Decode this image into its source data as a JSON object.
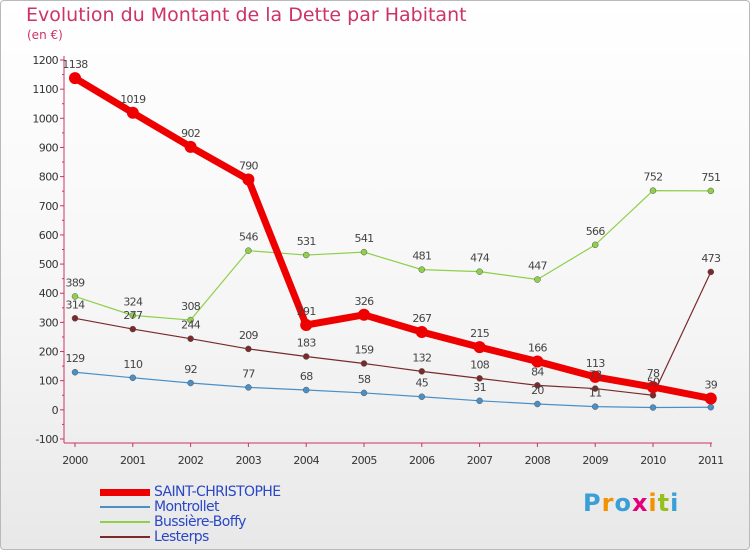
{
  "title": "Evolution du Montant de la Dette par Habitant",
  "unit": "(en €)",
  "logo": {
    "letters": [
      "P",
      "r",
      "o",
      "x",
      "i",
      "t",
      "i"
    ],
    "colors": [
      "#3a9fd8",
      "#f39200",
      "#3a9fd8",
      "#e2007a",
      "#f39200",
      "#95c11f",
      "#3a9fd8"
    ]
  },
  "chart_data": {
    "type": "line",
    "x": [
      "2000",
      "2001",
      "2002",
      "2003",
      "2004",
      "2005",
      "2006",
      "2007",
      "2008",
      "2009",
      "2010",
      "2011"
    ],
    "yticks": [
      "-100",
      "0",
      "100",
      "200",
      "300",
      "400",
      "500",
      "600",
      "700",
      "800",
      "900",
      "1000",
      "1100",
      "1200"
    ],
    "ylim": [
      -100,
      1200
    ],
    "grid": false,
    "legend_position": "bottom-left",
    "series": [
      {
        "name": "Montrollet",
        "color": "#4a90c8",
        "width": 1.2,
        "values": [
          129,
          110,
          92,
          77,
          68,
          58,
          45,
          31,
          20,
          11,
          8,
          9
        ],
        "labels": [
          "129",
          "110",
          "92",
          "77",
          "68",
          "58",
          "45",
          "31",
          "20",
          "11",
          "",
          ""
        ]
      },
      {
        "name": "Bussière-Boffy",
        "color": "#8ed04a",
        "width": 1.2,
        "values": [
          389,
          324,
          308,
          546,
          531,
          541,
          481,
          474,
          447,
          566,
          752,
          751
        ],
        "labels": [
          "389",
          "324",
          "308",
          "546",
          "531",
          "541",
          "481",
          "474",
          "447",
          "566",
          "752",
          "751"
        ]
      },
      {
        "name": "Lesterps",
        "color": "#7a2a2a",
        "width": 1.2,
        "values": [
          314,
          277,
          244,
          209,
          183,
          159,
          132,
          108,
          84,
          73,
          50,
          473
        ],
        "labels": [
          "314",
          "277",
          "244",
          "209",
          "183",
          "159",
          "132",
          "108",
          "84",
          "73",
          "50",
          "473"
        ]
      },
      {
        "name": "SAINT-CHRISTOPHE",
        "color": "#ee0000",
        "width": 7,
        "values": [
          1138,
          1019,
          902,
          790,
          291,
          326,
          267,
          215,
          166,
          113,
          78,
          39
        ],
        "labels": [
          "1138",
          "1019",
          "902",
          "790",
          "291",
          "326",
          "267",
          "215",
          "166",
          "113",
          "78",
          "39"
        ]
      }
    ],
    "legend": [
      {
        "name": "SAINT-CHRISTOPHE",
        "color": "#ee0000",
        "width": 7
      },
      {
        "name": "Montrollet",
        "color": "#4a90c8",
        "width": 2
      },
      {
        "name": "Bussière-Boffy",
        "color": "#8ed04a",
        "width": 2
      },
      {
        "name": "Lesterps",
        "color": "#7a2a2a",
        "width": 2
      }
    ]
  }
}
